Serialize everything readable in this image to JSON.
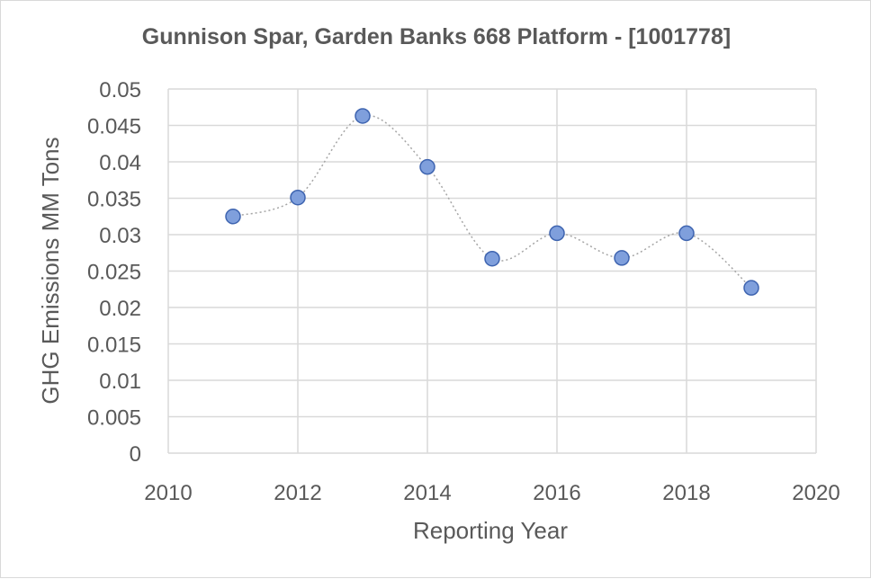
{
  "chart_data": {
    "type": "scatter",
    "title": "Gunnison Spar, Garden Banks 668 Platform - [1001778]",
    "xlabel": "Reporting Year",
    "ylabel": "GHG Emissions MM Tons",
    "xlim": [
      2010,
      2020
    ],
    "ylim": [
      0,
      0.05
    ],
    "x_ticks": [
      "2010",
      "2012",
      "2014",
      "2016",
      "2018",
      "2020"
    ],
    "y_ticks": [
      "0",
      "0.005",
      "0.01",
      "0.015",
      "0.02",
      "0.025",
      "0.03",
      "0.035",
      "0.04",
      "0.045",
      "0.05"
    ],
    "grid": true,
    "smoothed_line": true,
    "series": [
      {
        "x": [
          2011,
          2012,
          2013,
          2014,
          2015,
          2016,
          2017,
          2018,
          2019
        ],
        "y": [
          0.0325,
          0.0351,
          0.0463,
          0.0393,
          0.0267,
          0.0302,
          0.0268,
          0.0302,
          0.0227
        ]
      }
    ],
    "colors": {
      "marker_fill": "#7f9fdc",
      "marker_stroke": "#3e64b0",
      "line": "#a6a6a6",
      "grid": "#d9d9d9"
    }
  }
}
